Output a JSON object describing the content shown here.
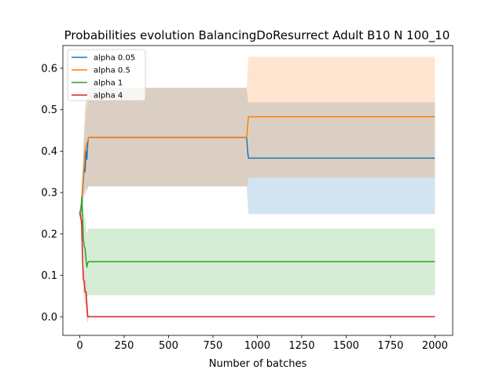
{
  "chart_data": {
    "type": "line",
    "title": "Probabilities evolution BalancingDoResurrect Adult B10 N 100_10",
    "xlabel": "Number of batches",
    "ylabel": "",
    "xlim": [
      -95,
      2100
    ],
    "ylim": [
      -0.045,
      0.655
    ],
    "xticks": [
      0,
      250,
      500,
      750,
      1000,
      1250,
      1500,
      1750,
      2000
    ],
    "yticks": [
      0.0,
      0.1,
      0.2,
      0.3,
      0.4,
      0.5,
      0.6
    ],
    "ytick_labels": [
      "0.0",
      "0.1",
      "0.2",
      "0.3",
      "0.4",
      "0.5",
      "0.6"
    ],
    "grid": false,
    "legend_position": "top-left",
    "series": [
      {
        "name": "alpha 0.05",
        "color": "#1f77b4",
        "x": [
          0,
          10,
          15,
          20,
          25,
          30,
          35,
          40,
          45,
          50,
          940,
          945,
          950,
          2000
        ],
        "y": [
          0.25,
          0.27,
          0.3,
          0.33,
          0.36,
          0.35,
          0.4,
          0.38,
          0.42,
          0.433,
          0.433,
          0.4,
          0.383,
          0.383
        ],
        "band_low": [
          0.25,
          0.24,
          0.26,
          0.28,
          0.3,
          0.29,
          0.31,
          0.3,
          0.31,
          0.315,
          0.315,
          0.28,
          0.248,
          0.248
        ],
        "band_high": [
          0.25,
          0.3,
          0.34,
          0.4,
          0.45,
          0.47,
          0.52,
          0.5,
          0.54,
          0.553,
          0.553,
          0.53,
          0.518,
          0.518
        ]
      },
      {
        "name": "alpha 0.5",
        "color": "#ff7f0e",
        "x": [
          0,
          10,
          15,
          20,
          25,
          30,
          35,
          40,
          45,
          50,
          940,
          945,
          950,
          2000
        ],
        "y": [
          0.25,
          0.27,
          0.31,
          0.34,
          0.37,
          0.4,
          0.41,
          0.42,
          0.425,
          0.433,
          0.433,
          0.46,
          0.483,
          0.483
        ],
        "band_low": [
          0.25,
          0.24,
          0.26,
          0.28,
          0.3,
          0.3,
          0.31,
          0.31,
          0.31,
          0.315,
          0.315,
          0.32,
          0.336,
          0.336
        ],
        "band_high": [
          0.25,
          0.3,
          0.35,
          0.4,
          0.46,
          0.5,
          0.53,
          0.54,
          0.55,
          0.553,
          0.553,
          0.59,
          0.628,
          0.628
        ]
      },
      {
        "name": "alpha 1",
        "color": "#2ca02c",
        "x": [
          0,
          8,
          12,
          16,
          20,
          25,
          30,
          35,
          40,
          45,
          50,
          2000
        ],
        "y": [
          0.25,
          0.26,
          0.29,
          0.24,
          0.19,
          0.17,
          0.165,
          0.14,
          0.12,
          0.13,
          0.133,
          0.133
        ],
        "band_low": [
          0.25,
          0.24,
          0.26,
          0.2,
          0.14,
          0.1,
          0.09,
          0.07,
          0.05,
          0.05,
          0.052,
          0.052
        ],
        "band_high": [
          0.25,
          0.28,
          0.31,
          0.28,
          0.25,
          0.24,
          0.24,
          0.22,
          0.2,
          0.21,
          0.213,
          0.213
        ]
      },
      {
        "name": "alpha 4",
        "color": "#d62728",
        "x": [
          0,
          5,
          10,
          15,
          20,
          25,
          30,
          35,
          40,
          45,
          50,
          2000
        ],
        "y": [
          0.25,
          0.24,
          0.23,
          0.15,
          0.09,
          0.085,
          0.06,
          0.06,
          0.03,
          0.0,
          0.0,
          0.0
        ],
        "band_low": [
          0.25,
          0.23,
          0.21,
          0.12,
          0.06,
          0.05,
          0.03,
          0.02,
          -0.01,
          -0.015,
          0.0,
          0.0
        ],
        "band_high": [
          0.25,
          0.25,
          0.25,
          0.18,
          0.12,
          0.11,
          0.09,
          0.09,
          0.06,
          0.02,
          0.0,
          0.0
        ]
      }
    ]
  }
}
